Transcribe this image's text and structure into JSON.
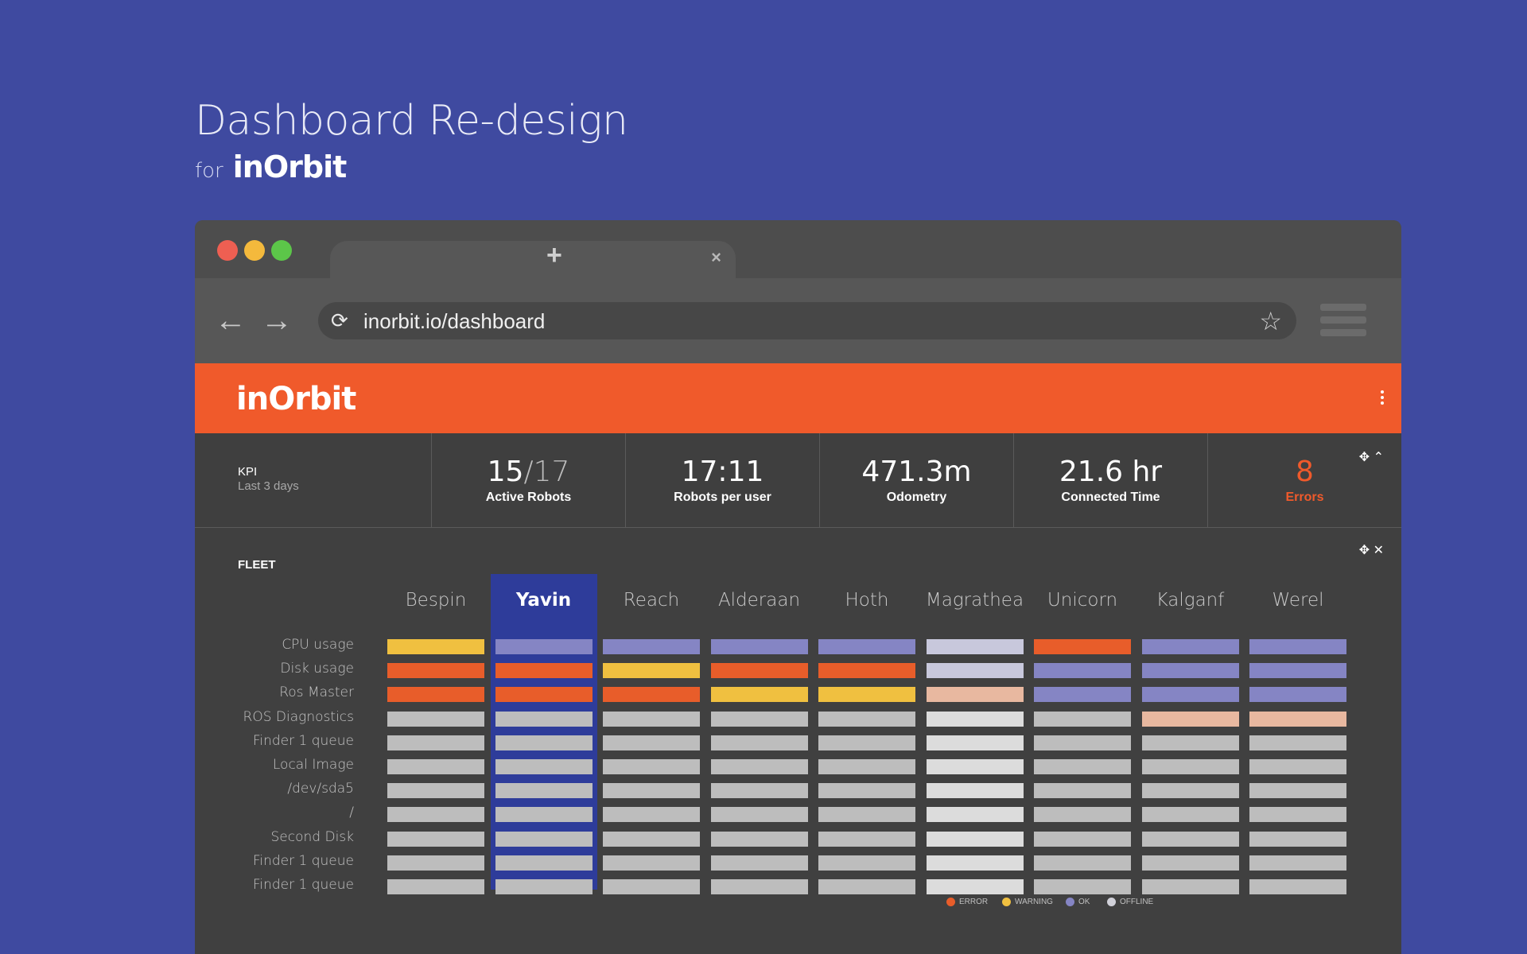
{
  "hero": {
    "title": "Dashboard Re-design",
    "for_label": "for",
    "brand": "inOrbit"
  },
  "browser": {
    "tab_close": "×",
    "tab_new": "+",
    "back": "←",
    "forward": "→",
    "reload": "⟳",
    "url": "inorbit.io/dashboard",
    "bookmark": "☆"
  },
  "app": {
    "brand": "inOrbit"
  },
  "kpi": {
    "title": "KPI",
    "period": "Last 3 days",
    "controls": "✥ ⌃",
    "items": [
      {
        "value_main": "15",
        "value_dim": "/17",
        "caption": "Active Robots"
      },
      {
        "value_main": "17:11",
        "value_dim": "",
        "caption": "Robots per user"
      },
      {
        "value_main": "471.3m",
        "value_dim": "",
        "caption": "Odometry"
      },
      {
        "value_main": "21.6 hr",
        "value_dim": "",
        "caption": "Connected Time"
      },
      {
        "value_main": "8",
        "value_dim": "",
        "caption": "Errors"
      }
    ]
  },
  "fleet": {
    "title": "FLEET",
    "controls": "✥ ✕",
    "selected_robot": "Yavin",
    "robots": [
      "Bespin",
      "Yavin",
      "Reach",
      "Alderaan",
      "Hoth",
      "Magrathea",
      "Unicorn",
      "Kalganf",
      "Werel"
    ],
    "metrics": [
      "CPU usage",
      "Disk usage",
      "Ros Master",
      "ROS Diagnostics",
      "Finder 1 queue",
      "Local Image",
      "/dev/sda5",
      "/",
      "Second Disk",
      "Finder 1 queue",
      "Finder 1 queue"
    ],
    "status_colors": {
      "error": "#e85d2a",
      "warning": "#f0c040",
      "ok": "#8585c4",
      "offline": "#bdbdbd",
      "offline_light": "#dcdcdc",
      "ok_light": "#c8c8dc",
      "warning_light": "#e8b8a0"
    },
    "status_grid": [
      [
        "warning",
        "ok",
        "ok",
        "ok",
        "ok",
        "ok_light",
        "error",
        "ok",
        "ok"
      ],
      [
        "error",
        "error",
        "warning",
        "error",
        "error",
        "ok_light",
        "ok",
        "ok",
        "ok"
      ],
      [
        "error",
        "error",
        "error",
        "warning",
        "warning",
        "warning_light",
        "ok",
        "ok",
        "ok"
      ],
      [
        "offline",
        "offline",
        "offline",
        "offline",
        "offline",
        "offline_light",
        "offline",
        "warning_light",
        "warning_light"
      ],
      [
        "offline",
        "offline",
        "offline",
        "offline",
        "offline",
        "offline_light",
        "offline",
        "offline",
        "offline"
      ],
      [
        "offline",
        "offline",
        "offline",
        "offline",
        "offline",
        "offline_light",
        "offline",
        "offline",
        "offline"
      ],
      [
        "offline",
        "offline",
        "offline",
        "offline",
        "offline",
        "offline_light",
        "offline",
        "offline",
        "offline"
      ],
      [
        "offline",
        "offline",
        "offline",
        "offline",
        "offline",
        "offline_light",
        "offline",
        "offline",
        "offline"
      ],
      [
        "offline",
        "offline",
        "offline",
        "offline",
        "offline",
        "offline_light",
        "offline",
        "offline",
        "offline"
      ],
      [
        "offline",
        "offline",
        "offline",
        "offline",
        "offline",
        "offline_light",
        "offline",
        "offline",
        "offline"
      ],
      [
        "offline",
        "offline",
        "offline",
        "offline",
        "offline",
        "offline_light",
        "offline",
        "offline",
        "offline"
      ]
    ],
    "legend": [
      {
        "label": "ERROR",
        "color": "#e85d2a"
      },
      {
        "label": "WARNING",
        "color": "#f0c040"
      },
      {
        "label": "OK",
        "color": "#8585c4"
      },
      {
        "label": "OFFLINE",
        "color": "#d0d0d8"
      }
    ]
  }
}
